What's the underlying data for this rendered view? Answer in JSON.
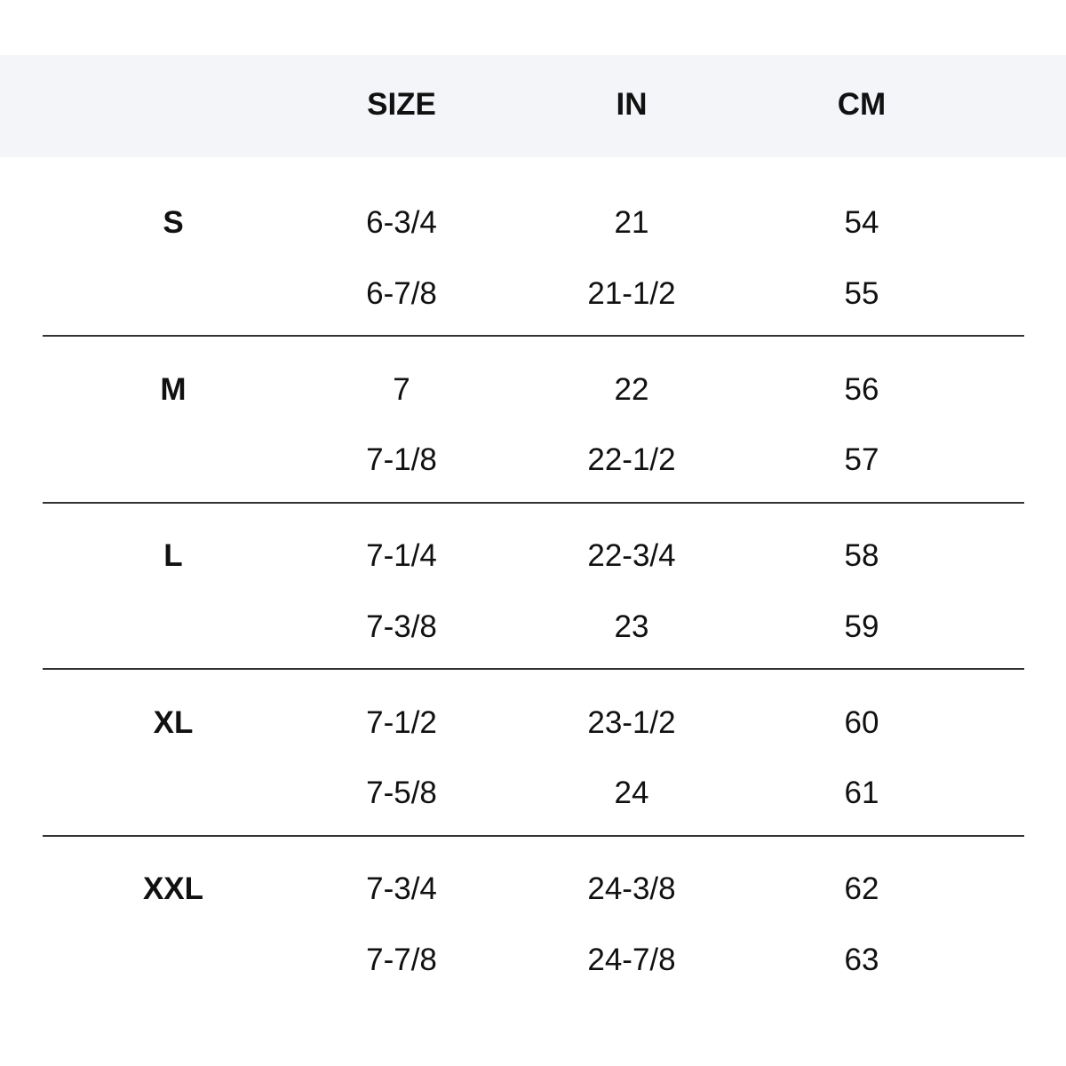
{
  "table": {
    "header": [
      "SIZE",
      "IN",
      "CM"
    ],
    "groups": [
      {
        "label": "S",
        "rows": [
          [
            "6-3/4",
            "21",
            "54"
          ],
          [
            "6-7/8",
            "21-1/2",
            "55"
          ]
        ]
      },
      {
        "label": "M",
        "rows": [
          [
            "7",
            "22",
            "56"
          ],
          [
            "7-1/8",
            "22-1/2",
            "57"
          ]
        ]
      },
      {
        "label": "L",
        "rows": [
          [
            "7-1/4",
            "22-3/4",
            "58"
          ],
          [
            "7-3/8",
            "23",
            "59"
          ]
        ]
      },
      {
        "label": "XL",
        "rows": [
          [
            "7-1/2",
            "23-1/2",
            "60"
          ],
          [
            "7-5/8",
            "24",
            "61"
          ]
        ]
      },
      {
        "label": "XXL",
        "rows": [
          [
            "7-3/4",
            "24-3/8",
            "62"
          ],
          [
            "7-7/8",
            "24-7/8",
            "63"
          ]
        ]
      }
    ]
  }
}
